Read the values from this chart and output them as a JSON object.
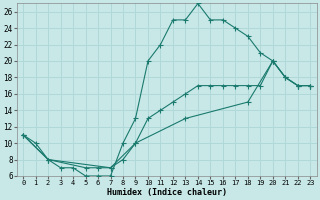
{
  "xlabel": "Humidex (Indice chaleur)",
  "bg_color": "#c8e8e8",
  "grid_color": "#b0d8d8",
  "line_color": "#1a7a6e",
  "xlim": [
    -0.5,
    23.5
  ],
  "ylim": [
    6,
    27
  ],
  "yticks": [
    6,
    8,
    10,
    12,
    14,
    16,
    18,
    20,
    22,
    24,
    26
  ],
  "xticks": [
    0,
    1,
    2,
    3,
    4,
    5,
    6,
    7,
    8,
    9,
    10,
    11,
    12,
    13,
    14,
    15,
    16,
    17,
    18,
    19,
    20,
    21,
    22,
    23
  ],
  "line1_x": [
    0,
    1,
    2,
    3,
    4,
    5,
    6,
    7,
    8,
    9,
    10,
    11,
    12,
    13,
    14,
    15,
    16,
    17,
    18,
    19,
    20,
    21,
    22,
    23
  ],
  "line1_y": [
    11,
    10,
    8,
    7,
    7,
    6,
    6,
    6,
    10,
    13,
    20,
    22,
    25,
    25,
    27,
    25,
    25,
    24,
    23,
    21,
    20,
    18,
    17,
    17
  ],
  "line2_x": [
    0,
    2,
    5,
    6,
    7,
    8,
    9,
    10,
    11,
    12,
    13,
    14,
    15,
    16,
    17,
    18,
    19,
    20,
    21,
    22,
    23
  ],
  "line2_y": [
    11,
    8,
    7,
    7,
    7,
    8,
    10,
    13,
    14,
    15,
    16,
    17,
    17,
    17,
    17,
    17,
    17,
    20,
    18,
    17,
    17
  ],
  "line3_x": [
    0,
    2,
    7,
    9,
    13,
    18,
    20,
    21,
    22,
    23
  ],
  "line3_y": [
    11,
    8,
    7,
    10,
    13,
    15,
    20,
    18,
    17,
    17
  ]
}
